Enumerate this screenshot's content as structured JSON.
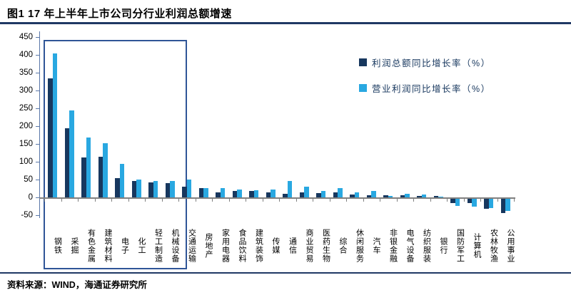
{
  "header": {
    "title": "图1  17 年上半年上市公司分行业利润总额增速"
  },
  "footer": {
    "source": "资料来源：WIND，海通证券研究所"
  },
  "colors": {
    "bar_dark": "#17375e",
    "bar_light": "#29a8e1",
    "legend_text": "#17375e",
    "rule_navy": "#1f3864",
    "axis_line": "#5a77a8",
    "baseline_gray": "#808080",
    "highlight_box": "#2f5597",
    "tick_gray": "#808080"
  },
  "legend": [
    {
      "label": "利润总额同比增长率（%）",
      "swatch": "#17375e"
    },
    {
      "label": "营业利润同比增长率（%）",
      "swatch": "#29a8e1"
    }
  ],
  "chart_data": {
    "type": "bar",
    "title": "17 年上半年上市公司分行业利润总额增速",
    "categories": [
      "钢铁",
      "采掘",
      "有色金属",
      "建筑材料",
      "电子",
      "化工",
      "轻工制造",
      "机械设备",
      "交通运输",
      "房地产",
      "家用电器",
      "食品饮料",
      "建筑装饰",
      "传媒",
      "通信",
      "商业贸易",
      "医药生物",
      "综合",
      "休闲服务",
      "汽车",
      "非银金融",
      "电气设备",
      "纺织服装",
      "银行",
      "国防军工",
      "计算机",
      "农林牧渔",
      "公用事业"
    ],
    "series": [
      {
        "name": "利润总额同比增长率（%）",
        "color": "#17375e",
        "values": [
          335,
          194,
          113,
          115,
          55,
          46,
          43,
          40,
          30,
          26,
          14,
          19,
          19,
          14,
          11,
          14,
          12,
          14,
          8,
          7,
          7,
          7,
          5,
          4,
          -12,
          -11,
          -27,
          -40
        ]
      },
      {
        "name": "营业利润同比增长率（%）",
        "color": "#29a8e1",
        "values": [
          405,
          245,
          168,
          152,
          94,
          50,
          46,
          46,
          50,
          27,
          27,
          22,
          21,
          22,
          46,
          31,
          19,
          27,
          15,
          19,
          5,
          11,
          9,
          2,
          -20,
          -21,
          -26,
          -34
        ]
      }
    ],
    "ylim": [
      -50,
      450
    ],
    "yticks": [
      450,
      400,
      350,
      300,
      250,
      200,
      150,
      100,
      50,
      0,
      -50
    ],
    "xlabel": "",
    "ylabel": "",
    "grid": false,
    "legend_position": "top-right",
    "highlight_box": {
      "from": "钢铁",
      "to": "机械设备"
    }
  }
}
